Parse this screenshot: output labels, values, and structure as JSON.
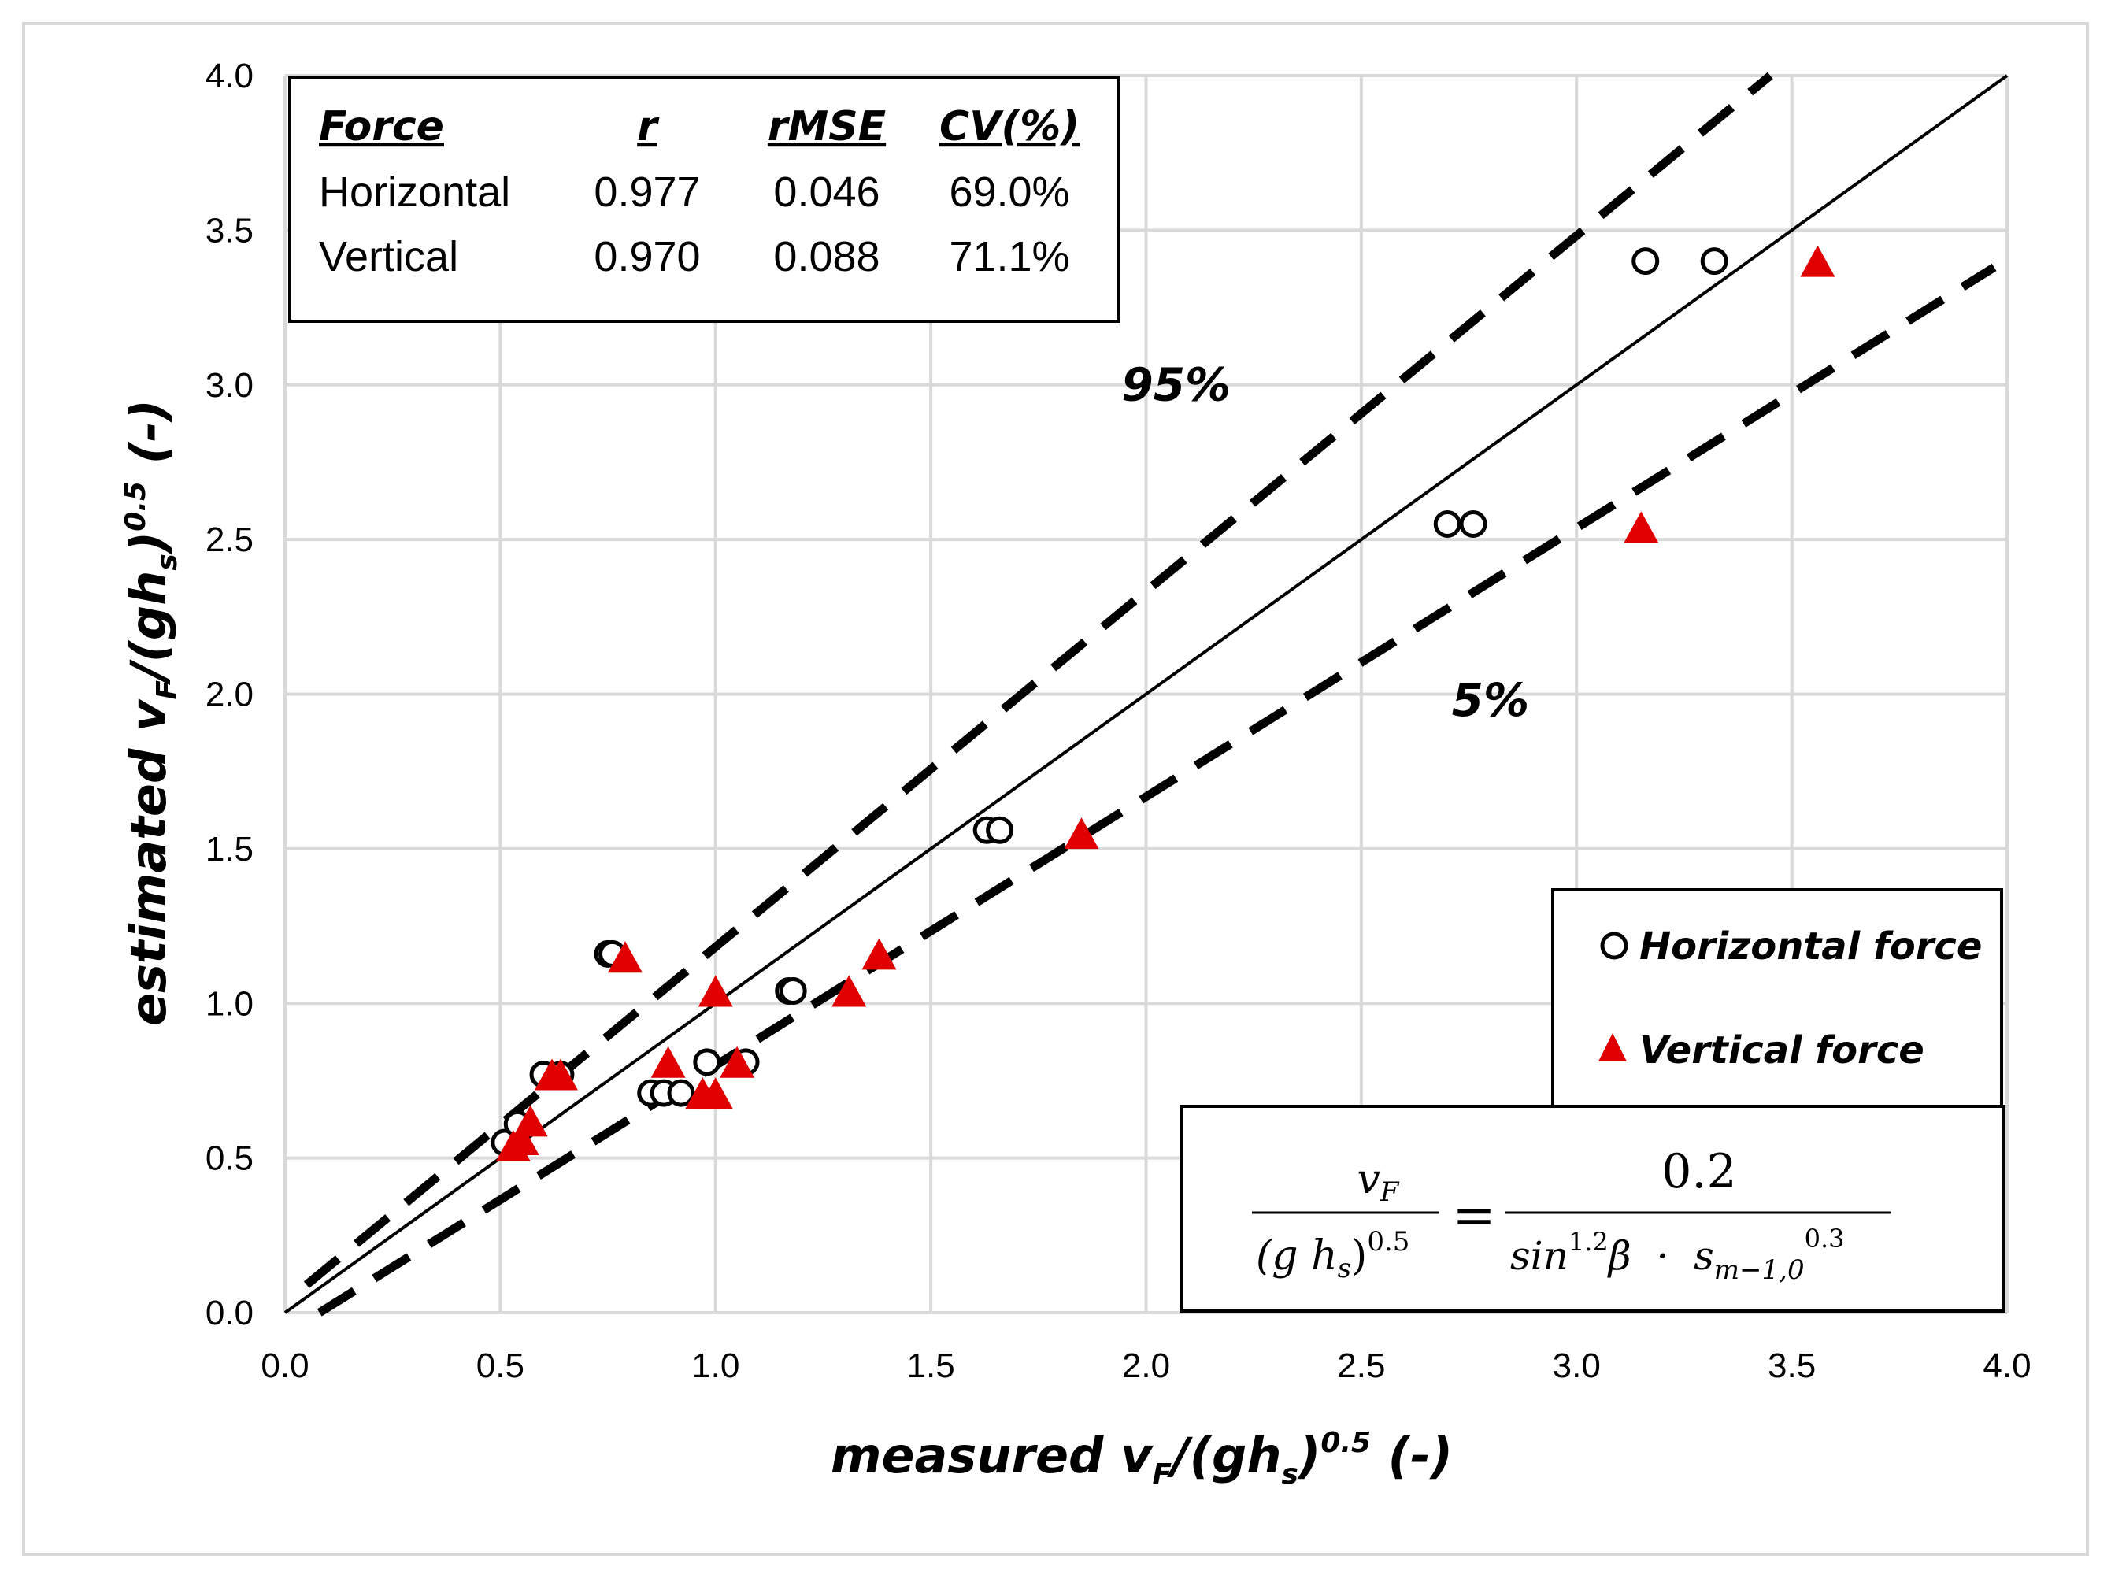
{
  "chart_data": {
    "type": "scatter",
    "title": "",
    "xlabel": {
      "main": "measured v",
      "sub1": "F",
      "mid": "/(gh",
      "sub2": "s",
      "close": ")",
      "sup": "0.5",
      "tail": " (-)"
    },
    "ylabel": {
      "main": "estimated v",
      "sub1": "F",
      "mid": "/(gh",
      "sub2": "s",
      "close": ")",
      "sup": "0.5",
      "tail": " (-)"
    },
    "xlim": [
      0,
      4
    ],
    "ylim": [
      0,
      4
    ],
    "x_ticks": [
      "0.0",
      "0.5",
      "1.0",
      "1.5",
      "2.0",
      "2.5",
      "3.0",
      "3.5",
      "4.0"
    ],
    "y_ticks": [
      "0.0",
      "0.5",
      "1.0",
      "1.5",
      "2.0",
      "2.5",
      "3.0",
      "3.5",
      "4.0"
    ],
    "grid": true,
    "series": [
      {
        "name": "Horizontal force",
        "marker": "open-circle",
        "color": "#000000",
        "points": [
          [
            0.51,
            0.55
          ],
          [
            0.54,
            0.61
          ],
          [
            0.6,
            0.77
          ],
          [
            0.64,
            0.77
          ],
          [
            0.75,
            1.16
          ],
          [
            0.76,
            1.16
          ],
          [
            0.85,
            0.71
          ],
          [
            0.88,
            0.71
          ],
          [
            0.92,
            0.71
          ],
          [
            0.98,
            0.81
          ],
          [
            1.07,
            0.81
          ],
          [
            1.17,
            1.04
          ],
          [
            1.18,
            1.04
          ],
          [
            1.63,
            1.56
          ],
          [
            1.66,
            1.56
          ],
          [
            2.7,
            2.55
          ],
          [
            2.76,
            2.55
          ],
          [
            3.16,
            3.4
          ],
          [
            3.32,
            3.4
          ]
        ]
      },
      {
        "name": "Vertical force",
        "marker": "filled-triangle",
        "color": "#e00000",
        "points": [
          [
            0.53,
            0.53
          ],
          [
            0.55,
            0.55
          ],
          [
            0.57,
            0.61
          ],
          [
            0.62,
            0.76
          ],
          [
            0.64,
            0.76
          ],
          [
            0.79,
            1.14
          ],
          [
            0.89,
            0.8
          ],
          [
            0.97,
            0.7
          ],
          [
            1.0,
            0.7
          ],
          [
            1.0,
            1.03
          ],
          [
            1.05,
            0.8
          ],
          [
            1.31,
            1.03
          ],
          [
            1.38,
            1.15
          ],
          [
            1.85,
            1.54
          ],
          [
            3.15,
            2.53
          ],
          [
            3.56,
            3.39
          ]
        ]
      }
    ],
    "lines": [
      {
        "name": "identity",
        "style": "solid",
        "x": [
          0.0,
          4.0
        ],
        "y": [
          0.0,
          4.0
        ]
      },
      {
        "name": "95%",
        "style": "dashed",
        "x": [
          0.05,
          3.45
        ],
        "y": [
          0.09,
          4.0
        ]
      },
      {
        "name": "5%",
        "style": "dashed",
        "x": [
          0.08,
          3.97
        ],
        "y": [
          0.0,
          3.38
        ]
      }
    ],
    "annotations": [
      {
        "text": "95%",
        "x": 2.07,
        "y": 2.95
      },
      {
        "text": "5%",
        "x": 2.8,
        "y": 1.93
      }
    ],
    "stats_table": {
      "headers": [
        "Force",
        "r",
        "rMSE",
        "CV(%)"
      ],
      "rows": [
        [
          "Horizontal",
          "0.977",
          "0.046",
          "69.0%"
        ],
        [
          "Vertical",
          "0.970",
          "0.088",
          "71.1%"
        ]
      ]
    },
    "legend": {
      "position": "lower-right",
      "entries": [
        {
          "marker": "open-circle",
          "label": "Horizontal force"
        },
        {
          "marker": "filled-triangle",
          "label": "Vertical force"
        }
      ]
    },
    "formula": {
      "lhs_num": "v",
      "lhs_num_sub": "F",
      "lhs_den": "(g h",
      "lhs_den_sub": "s",
      "lhs_den_close": ")",
      "lhs_den_sup": "0.5",
      "eq": "=",
      "rhs_num": "0.2",
      "rhs_den_a": "sin",
      "rhs_den_a_sup": "1.2",
      "rhs_den_b": "β  ·  s",
      "rhs_den_sub": "m−1,0",
      "rhs_den_sup": "0.3"
    }
  }
}
